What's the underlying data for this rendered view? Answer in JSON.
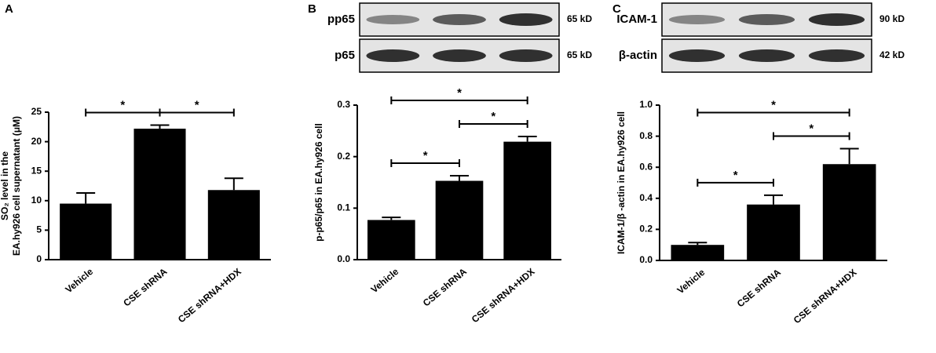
{
  "chart_data": [
    {
      "type": "bar",
      "panel": "A",
      "y_label": [
        "SO₂ level in the",
        "EA.hy926 cell supernatant (μM)"
      ],
      "categories": [
        "Vehicle",
        "CSE shRNA",
        "CSE shRNA+HDX"
      ],
      "values": [
        9.5,
        22.2,
        11.8
      ],
      "errors": [
        1.8,
        0.6,
        2.0
      ],
      "color": "#000000",
      "ylim": [
        0,
        25
      ],
      "yticks": [
        0,
        5,
        10,
        15,
        20,
        25
      ],
      "annotations": [
        {
          "text": "*",
          "between": [
            0,
            1
          ]
        },
        {
          "text": "*",
          "between": [
            1,
            2
          ]
        }
      ]
    },
    {
      "type": "bar",
      "panel": "B",
      "blot": [
        {
          "name": "pp65",
          "size": "65 kD"
        },
        {
          "name": "p65",
          "size": "65 kD"
        }
      ],
      "y_label": [
        "p-p65/p65 in EA.hy926 cell"
      ],
      "categories": [
        "Vehicle",
        "CSE shRNA",
        "CSE shRNA+HDX"
      ],
      "values": [
        0.077,
        0.153,
        0.229
      ],
      "errors": [
        0.005,
        0.01,
        0.01
      ],
      "color": "#000000",
      "ylim": [
        0,
        0.3
      ],
      "yticks": [
        {
          "value": 0,
          "label": "0.0"
        },
        0.1,
        0.2,
        0.3
      ],
      "annotations": [
        {
          "text": "*",
          "between": [
            0,
            2
          ]
        },
        {
          "text": "*",
          "between": [
            1,
            2
          ]
        },
        {
          "text": "*",
          "between": [
            0,
            1
          ]
        }
      ]
    },
    {
      "type": "bar",
      "panel": "C",
      "blot": [
        {
          "name": "ICAM-1",
          "size": "90 kD"
        },
        {
          "name": "β-actin",
          "size": "42 kD"
        }
      ],
      "y_label": [
        "ICAM-1/β -actin in EA.hy926 cell"
      ],
      "categories": [
        "Vehicle",
        "CSE shRNA",
        "CSE shRNA+HDX"
      ],
      "values": [
        0.1,
        0.36,
        0.62
      ],
      "errors": [
        0.015,
        0.06,
        0.1
      ],
      "color": "#000000",
      "ylim": [
        0,
        1
      ],
      "yticks": [
        {
          "value": 0,
          "label": "0.0"
        },
        0.2,
        0.4,
        0.6,
        0.8,
        {
          "value": 1,
          "label": "1.0"
        }
      ],
      "annotations": [
        {
          "text": "*",
          "between": [
            0,
            2
          ]
        },
        {
          "text": "*",
          "between": [
            1,
            2
          ]
        },
        {
          "text": "*",
          "between": [
            0,
            1
          ]
        }
      ]
    }
  ]
}
